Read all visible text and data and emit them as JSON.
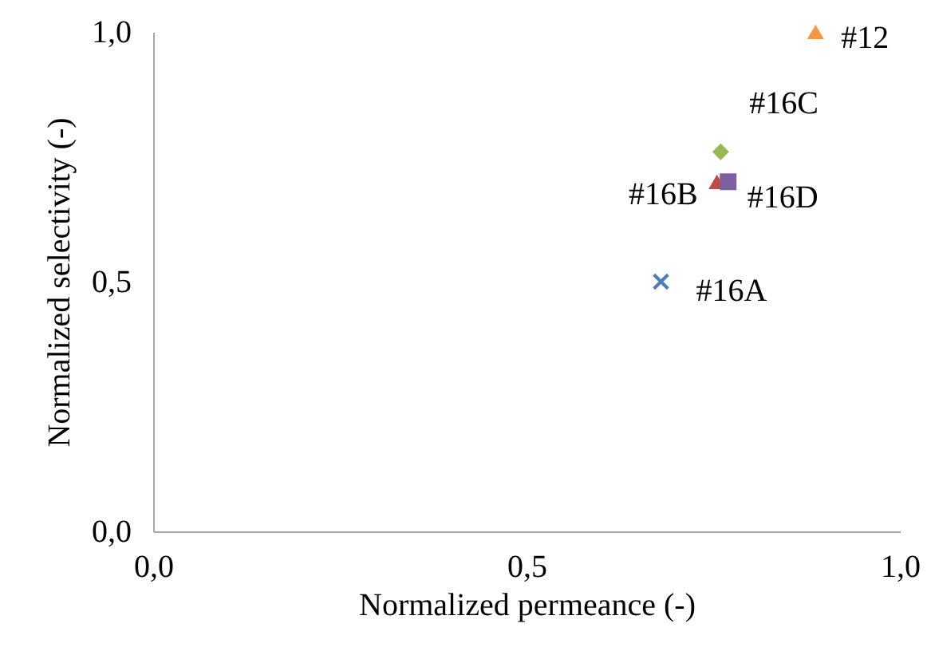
{
  "chart_data": {
    "type": "scatter",
    "xlabel": "Normalized permeance (-)",
    "ylabel": "Normalized selectivity (-)",
    "xlim": [
      0,
      1
    ],
    "ylim": [
      0,
      1
    ],
    "xticks": [
      {
        "value": 0,
        "label": "0,0"
      },
      {
        "value": 0.5,
        "label": "0,5"
      },
      {
        "value": 1,
        "label": "1,0"
      }
    ],
    "yticks": [
      {
        "value": 0,
        "label": "0,0"
      },
      {
        "value": 0.5,
        "label": "0,5"
      },
      {
        "value": 1,
        "label": "1,0"
      }
    ],
    "grid": false,
    "series": [
      {
        "name": "#16A",
        "color": "#4a7ebb",
        "marker": "cross",
        "x": [
          0.68
        ],
        "values": [
          0.5
        ]
      },
      {
        "name": "#16B",
        "color": "#be4b48",
        "marker": "triangle",
        "x": [
          0.755
        ],
        "values": [
          0.7
        ]
      },
      {
        "name": "#16C",
        "color": "#98b954",
        "marker": "diamond",
        "x": [
          0.76
        ],
        "values": [
          0.76
        ]
      },
      {
        "name": "#16D",
        "color": "#7d60a0",
        "marker": "square",
        "x": [
          0.77
        ],
        "values": [
          0.7
        ]
      },
      {
        "name": "#12",
        "color": "#f79646",
        "marker": "triangle",
        "x": [
          0.887
        ],
        "values": [
          1.0
        ]
      }
    ]
  }
}
